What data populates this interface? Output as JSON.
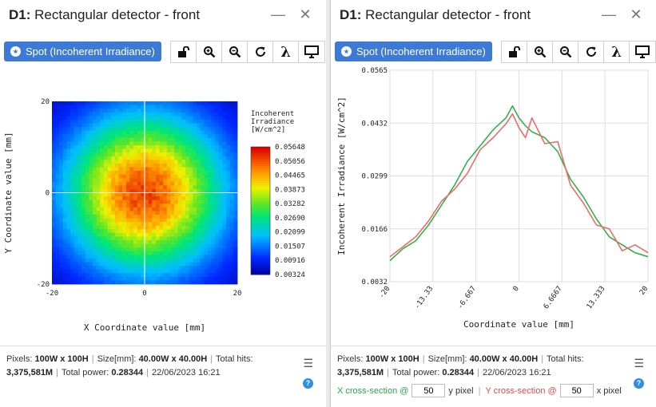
{
  "panels": [
    {
      "title_bold": "D1:",
      "title_rest": " Rectangular detector - front",
      "spot_label": "Spot (Incoherent Irradiance)",
      "info": {
        "pixels_label": "Pixels:",
        "pixels_value": "100W x 100H",
        "size_label": "Size[mm]:",
        "size_value": "40.00W x 40.00H",
        "hits_label": "Total hits:",
        "hits_value": "3,375,581M",
        "power_label": "Total power:",
        "power_value": "0.28344",
        "timestamp": "22/06/2023 16:21"
      }
    },
    {
      "title_bold": "D1:",
      "title_rest": " Rectangular detector - front",
      "spot_label": "Spot (Incoherent Irradiance)",
      "info": {
        "pixels_label": "Pixels:",
        "pixels_value": "100W x 100H",
        "size_label": "Size[mm]:",
        "size_value": "40.00W x 40.00H",
        "hits_label": "Total hits:",
        "hits_value": "3,375,581M",
        "power_label": "Total power:",
        "power_value": "0.28344",
        "timestamp": "22/06/2023 16:21"
      },
      "cross_section": {
        "x_label": "X cross-section @",
        "x_value": "50",
        "x_unit": "y pixel",
        "y_label": "Y cross-section @",
        "y_value": "50",
        "y_unit": "x pixel"
      }
    }
  ],
  "toolbar_icons": [
    "unlock-icon",
    "zoom-in-icon",
    "zoom-out-icon",
    "refresh-icon",
    "lambda-icon",
    "monitor-icon"
  ],
  "toolbar_lambda": "λ",
  "chart_data": [
    {
      "type": "heatmap",
      "xlabel": "X Coordinate value [mm]",
      "ylabel": "Y Coordinate value [mm]",
      "x_ticks": [
        "-20",
        "0",
        "20"
      ],
      "y_ticks": [
        "20",
        "0",
        "-20"
      ],
      "xlim": [
        -20,
        20
      ],
      "ylim": [
        -20,
        20
      ],
      "colorbar_title": [
        "Incoherent",
        "Irradiance",
        "[W/cm^2]"
      ],
      "colorbar_ticks": [
        "0.05648",
        "0.05056",
        "0.04465",
        "0.03873",
        "0.03282",
        "0.02690",
        "0.02099",
        "0.01507",
        "0.00916",
        "0.00324"
      ],
      "vmin": 0.00324,
      "vmax": 0.05648,
      "center_value": 0.052,
      "corner_value": 0.0036,
      "crosshair": {
        "x": 0,
        "y": 0
      }
    },
    {
      "type": "line",
      "xlabel": "Coordinate value [mm]",
      "ylabel": "Incoherent Irradiance [W/cm^2]",
      "x_ticks": [
        "-20",
        "-13.33",
        "-6.667",
        "0",
        "6.6667",
        "13.333",
        "20"
      ],
      "y_ticks": [
        "0.0565",
        "0.0432",
        "0.0299",
        "0.0166",
        "0.0032"
      ],
      "xlim": [
        -20,
        20
      ],
      "ylim": [
        0.0032,
        0.0565
      ],
      "grid": true,
      "series": [
        {
          "color": "#2fb24b",
          "x": [
            -20,
            -18,
            -16,
            -14,
            -12,
            -10,
            -8,
            -6,
            -4,
            -2,
            -1,
            0,
            1,
            2,
            4,
            6,
            8,
            10,
            12,
            14,
            16,
            18,
            20
          ],
          "y": [
            0.0085,
            0.0115,
            0.0135,
            0.0175,
            0.0225,
            0.0275,
            0.0335,
            0.0375,
            0.0415,
            0.0445,
            0.0475,
            0.0445,
            0.0425,
            0.041,
            0.0395,
            0.036,
            0.029,
            0.0245,
            0.019,
            0.0145,
            0.0125,
            0.0105,
            0.0095
          ]
        },
        {
          "color": "#f06a6a",
          "x": [
            -20,
            -18,
            -16,
            -14,
            -12,
            -10,
            -8,
            -6,
            -4,
            -2,
            -1,
            0,
            1,
            2,
            4,
            6,
            8,
            10,
            12,
            14,
            16,
            18,
            20
          ],
          "y": [
            0.0095,
            0.012,
            0.0145,
            0.0185,
            0.0235,
            0.0265,
            0.0305,
            0.0365,
            0.0395,
            0.043,
            0.0455,
            0.042,
            0.0395,
            0.0445,
            0.038,
            0.0385,
            0.0275,
            0.023,
            0.0175,
            0.0165,
            0.011,
            0.0125,
            0.0105
          ]
        }
      ]
    }
  ]
}
